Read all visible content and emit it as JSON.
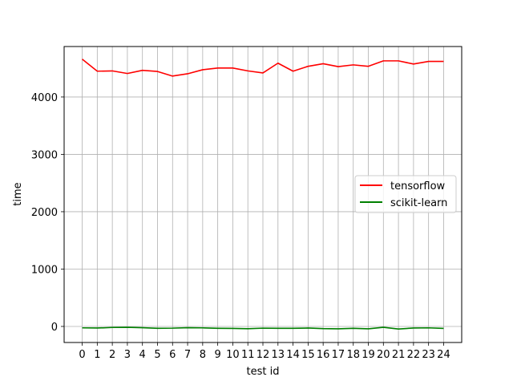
{
  "chart_data": {
    "type": "line",
    "xlabel": "test id",
    "ylabel": "time",
    "x": [
      0,
      1,
      2,
      3,
      4,
      5,
      6,
      7,
      8,
      9,
      10,
      11,
      12,
      13,
      14,
      15,
      16,
      17,
      18,
      19,
      20,
      21,
      22,
      23,
      24
    ],
    "xlim": [
      -1.2,
      25.2
    ],
    "ylim": [
      -280,
      4880
    ],
    "yticks": [
      0,
      1000,
      2000,
      3000,
      4000
    ],
    "grid": true,
    "legend_position": "center-right",
    "series": [
      {
        "name": "tensorflow",
        "color": "#ff0000",
        "values": [
          4660,
          4450,
          4455,
          4410,
          4465,
          4445,
          4365,
          4405,
          4475,
          4505,
          4505,
          4455,
          4420,
          4590,
          4450,
          4535,
          4580,
          4530,
          4560,
          4535,
          4630,
          4630,
          4575,
          4620,
          4620
        ]
      },
      {
        "name": "scikit-learn",
        "color": "#008000",
        "values": [
          -25,
          -28,
          -18,
          -15,
          -22,
          -32,
          -30,
          -22,
          -25,
          -32,
          -35,
          -40,
          -30,
          -32,
          -32,
          -28,
          -38,
          -42,
          -32,
          -42,
          -15,
          -45,
          -28,
          -25,
          -35
        ]
      }
    ]
  }
}
